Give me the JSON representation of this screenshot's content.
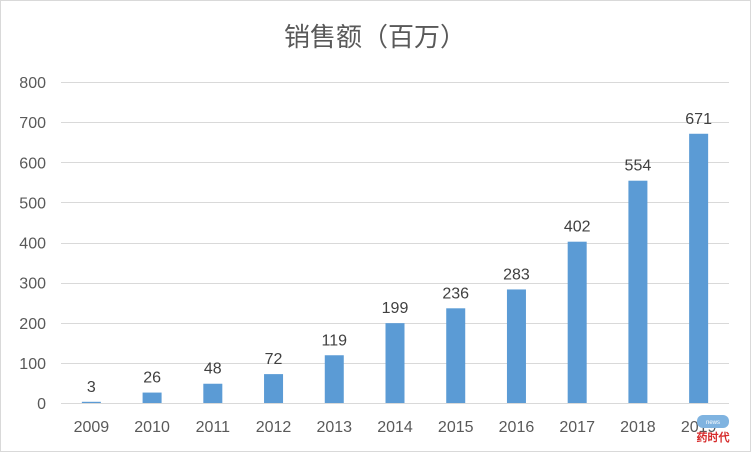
{
  "chart_data": {
    "type": "bar",
    "title": "销售额（百万）",
    "xlabel": "",
    "ylabel": "",
    "categories": [
      "2009",
      "2010",
      "2011",
      "2012",
      "2013",
      "2014",
      "2015",
      "2016",
      "2017",
      "2018",
      "2019"
    ],
    "values": [
      3,
      26,
      48,
      72,
      119,
      199,
      236,
      283,
      402,
      554,
      671
    ],
    "ylim": [
      0,
      800
    ],
    "yticks": [
      0,
      100,
      200,
      300,
      400,
      500,
      600,
      700,
      800
    ],
    "grid": true,
    "legend": "none",
    "bar_color": "#5b9bd5",
    "data_labels": true
  },
  "watermark": {
    "badge": "news",
    "text": "药时代"
  },
  "colors": {
    "grid": "#d9d9d9",
    "axis_text": "#595959",
    "label_text": "#404040",
    "watermark": "#d62b2b"
  }
}
